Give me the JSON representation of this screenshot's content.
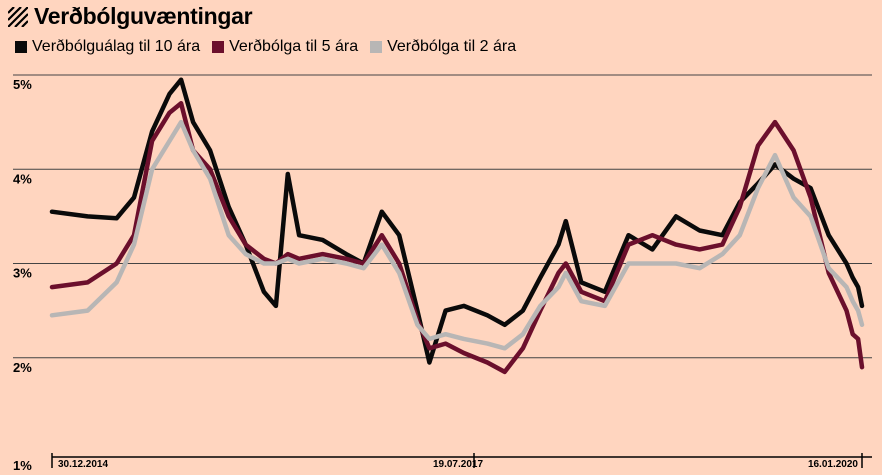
{
  "header": {
    "title": "Verðbólguvæntingar"
  },
  "colors": {
    "background": "#ffd5bf",
    "gridline": "#444444"
  },
  "chart_data": {
    "type": "line",
    "title": "Verðbólguvæntingar",
    "xlabel": "",
    "ylabel": "",
    "ylim": [
      1,
      5
    ],
    "yticks": [
      "1%",
      "2%",
      "3%",
      "4%",
      "5%"
    ],
    "xticks": [
      "30.12.2014",
      "19.07.2017",
      "16.01.2020"
    ],
    "xlim": [
      "2014-06-01",
      "2020-02-25"
    ],
    "grid": true,
    "legend_position": "top-left",
    "series": [
      {
        "name": "Verðbólguálag til 10 ára",
        "color": "#0a0a0a",
        "points": [
          [
            "2014-06-01",
            3.55
          ],
          [
            "2014-09-01",
            3.5
          ],
          [
            "2014-11-15",
            3.48
          ],
          [
            "2014-12-30",
            3.7
          ],
          [
            "2015-02-15",
            4.4
          ],
          [
            "2015-04-01",
            4.8
          ],
          [
            "2015-05-01",
            4.95
          ],
          [
            "2015-06-01",
            4.5
          ],
          [
            "2015-07-15",
            4.2
          ],
          [
            "2015-09-01",
            3.6
          ],
          [
            "2015-10-15",
            3.2
          ],
          [
            "2015-12-01",
            2.7
          ],
          [
            "2016-01-01",
            2.55
          ],
          [
            "2016-02-01",
            3.95
          ],
          [
            "2016-03-01",
            3.3
          ],
          [
            "2016-05-01",
            3.25
          ],
          [
            "2016-07-01",
            3.1
          ],
          [
            "2016-08-15",
            3.0
          ],
          [
            "2016-10-01",
            3.55
          ],
          [
            "2016-11-15",
            3.3
          ],
          [
            "2017-01-01",
            2.5
          ],
          [
            "2017-02-01",
            1.95
          ],
          [
            "2017-03-15",
            2.5
          ],
          [
            "2017-05-01",
            2.55
          ],
          [
            "2017-07-01",
            2.45
          ],
          [
            "2017-08-15",
            2.35
          ],
          [
            "2017-10-01",
            2.5
          ],
          [
            "2017-11-15",
            2.85
          ],
          [
            "2018-01-01",
            3.2
          ],
          [
            "2018-01-20",
            3.45
          ],
          [
            "2018-03-01",
            2.8
          ],
          [
            "2018-05-01",
            2.7
          ],
          [
            "2018-07-01",
            3.3
          ],
          [
            "2018-09-01",
            3.15
          ],
          [
            "2018-11-01",
            3.5
          ],
          [
            "2019-01-01",
            3.35
          ],
          [
            "2019-03-01",
            3.3
          ],
          [
            "2019-04-15",
            3.65
          ],
          [
            "2019-06-01",
            3.85
          ],
          [
            "2019-07-15",
            4.05
          ],
          [
            "2019-09-01",
            3.9
          ],
          [
            "2019-10-15",
            3.8
          ],
          [
            "2019-12-01",
            3.3
          ],
          [
            "2020-01-16",
            3.0
          ],
          [
            "2020-02-01",
            2.85
          ],
          [
            "2020-02-15",
            2.75
          ],
          [
            "2020-02-25",
            2.55
          ]
        ]
      },
      {
        "name": "Verðbólga til 5 ára",
        "color": "#6b0f2c",
        "points": [
          [
            "2014-06-01",
            2.75
          ],
          [
            "2014-09-01",
            2.8
          ],
          [
            "2014-11-15",
            3.0
          ],
          [
            "2014-12-30",
            3.3
          ],
          [
            "2015-02-15",
            4.3
          ],
          [
            "2015-04-01",
            4.6
          ],
          [
            "2015-05-01",
            4.7
          ],
          [
            "2015-06-01",
            4.2
          ],
          [
            "2015-07-15",
            4.0
          ],
          [
            "2015-09-01",
            3.5
          ],
          [
            "2015-10-15",
            3.2
          ],
          [
            "2015-12-01",
            3.05
          ],
          [
            "2016-01-01",
            3.0
          ],
          [
            "2016-02-01",
            3.1
          ],
          [
            "2016-03-01",
            3.05
          ],
          [
            "2016-05-01",
            3.1
          ],
          [
            "2016-07-01",
            3.05
          ],
          [
            "2016-08-15",
            3.0
          ],
          [
            "2016-10-01",
            3.3
          ],
          [
            "2016-11-15",
            3.0
          ],
          [
            "2017-01-01",
            2.4
          ],
          [
            "2017-02-01",
            2.1
          ],
          [
            "2017-03-15",
            2.15
          ],
          [
            "2017-05-01",
            2.05
          ],
          [
            "2017-07-01",
            1.95
          ],
          [
            "2017-08-15",
            1.85
          ],
          [
            "2017-10-01",
            2.1
          ],
          [
            "2017-11-15",
            2.5
          ],
          [
            "2018-01-01",
            2.9
          ],
          [
            "2018-01-20",
            3.0
          ],
          [
            "2018-03-01",
            2.7
          ],
          [
            "2018-05-01",
            2.6
          ],
          [
            "2018-07-01",
            3.2
          ],
          [
            "2018-09-01",
            3.3
          ],
          [
            "2018-11-01",
            3.2
          ],
          [
            "2019-01-01",
            3.15
          ],
          [
            "2019-03-01",
            3.2
          ],
          [
            "2019-04-15",
            3.6
          ],
          [
            "2019-06-01",
            4.25
          ],
          [
            "2019-07-15",
            4.5
          ],
          [
            "2019-09-01",
            4.2
          ],
          [
            "2019-10-15",
            3.7
          ],
          [
            "2019-12-01",
            2.9
          ],
          [
            "2020-01-16",
            2.5
          ],
          [
            "2020-02-01",
            2.25
          ],
          [
            "2020-02-15",
            2.2
          ],
          [
            "2020-02-25",
            1.9
          ]
        ]
      },
      {
        "name": "Verðbólga til 2 ára",
        "color": "#b8b6b5",
        "points": [
          [
            "2014-06-01",
            2.45
          ],
          [
            "2014-09-01",
            2.5
          ],
          [
            "2014-11-15",
            2.8
          ],
          [
            "2014-12-30",
            3.2
          ],
          [
            "2015-02-15",
            4.0
          ],
          [
            "2015-04-01",
            4.3
          ],
          [
            "2015-05-01",
            4.5
          ],
          [
            "2015-06-01",
            4.2
          ],
          [
            "2015-07-15",
            3.9
          ],
          [
            "2015-09-01",
            3.3
          ],
          [
            "2015-10-15",
            3.1
          ],
          [
            "2015-12-01",
            3.0
          ],
          [
            "2016-01-01",
            3.0
          ],
          [
            "2016-02-01",
            3.05
          ],
          [
            "2016-03-01",
            3.0
          ],
          [
            "2016-05-01",
            3.05
          ],
          [
            "2016-07-01",
            3.0
          ],
          [
            "2016-08-15",
            2.95
          ],
          [
            "2016-10-01",
            3.2
          ],
          [
            "2016-11-15",
            2.9
          ],
          [
            "2017-01-01",
            2.35
          ],
          [
            "2017-02-01",
            2.2
          ],
          [
            "2017-03-15",
            2.25
          ],
          [
            "2017-05-01",
            2.2
          ],
          [
            "2017-07-01",
            2.15
          ],
          [
            "2017-08-15",
            2.1
          ],
          [
            "2017-10-01",
            2.25
          ],
          [
            "2017-11-15",
            2.55
          ],
          [
            "2018-01-01",
            2.75
          ],
          [
            "2018-01-20",
            2.9
          ],
          [
            "2018-03-01",
            2.6
          ],
          [
            "2018-05-01",
            2.55
          ],
          [
            "2018-07-01",
            3.0
          ],
          [
            "2018-09-01",
            3.0
          ],
          [
            "2018-11-01",
            3.0
          ],
          [
            "2019-01-01",
            2.95
          ],
          [
            "2019-03-01",
            3.1
          ],
          [
            "2019-04-15",
            3.3
          ],
          [
            "2019-06-01",
            3.8
          ],
          [
            "2019-07-15",
            4.15
          ],
          [
            "2019-09-01",
            3.7
          ],
          [
            "2019-10-15",
            3.5
          ],
          [
            "2019-12-01",
            2.95
          ],
          [
            "2020-01-16",
            2.75
          ],
          [
            "2020-02-01",
            2.6
          ],
          [
            "2020-02-15",
            2.5
          ],
          [
            "2020-02-25",
            2.35
          ]
        ]
      }
    ]
  }
}
